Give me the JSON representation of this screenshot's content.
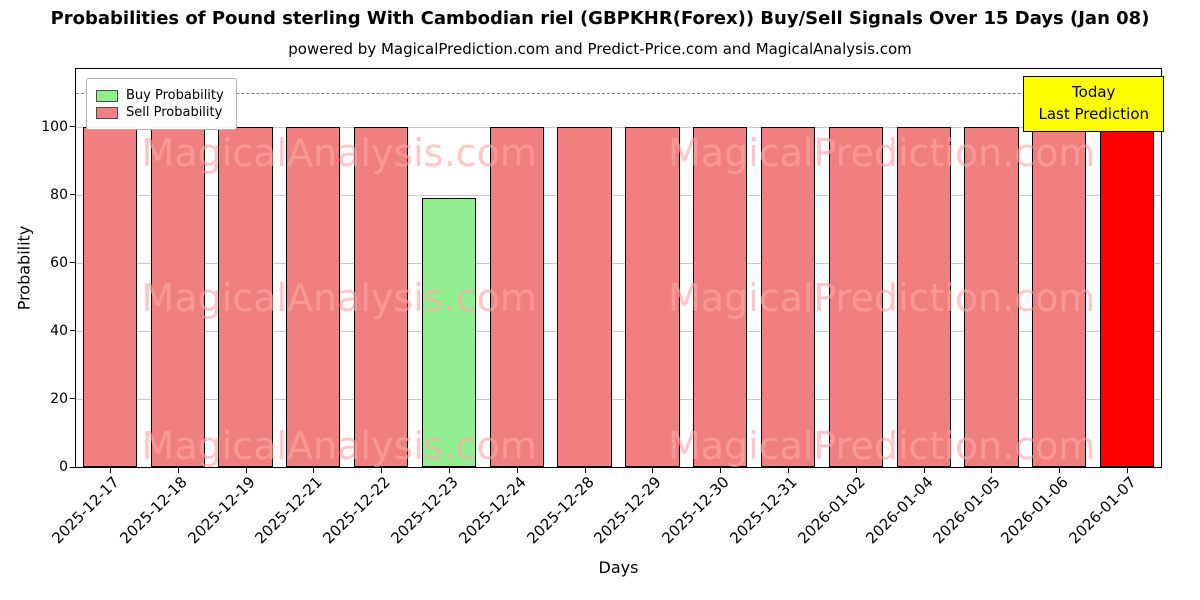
{
  "title": "Probabilities of Pound sterling With Cambodian riel (GBPKHR(Forex)) Buy/Sell Signals Over 15 Days (Jan 08)",
  "subtitle": "powered by MagicalPrediction.com and Predict-Price.com and MagicalAnalysis.com",
  "legend": {
    "items": [
      {
        "label": "Buy Probability",
        "color": "#90ee90"
      },
      {
        "label": "Sell Probability",
        "color": "#f08080"
      }
    ]
  },
  "annotation": {
    "line1": "Today",
    "line2": "Last Prediction",
    "bg_color": "#ffff00"
  },
  "watermarks": {
    "texts": [
      "MagicalAnalysis.com",
      "MagicalPrediction.com"
    ]
  },
  "chart_data": {
    "type": "bar",
    "title": "Probabilities of Pound sterling With Cambodian riel (GBPKHR(Forex)) Buy/Sell Signals Over 15 Days (Jan 08)",
    "xlabel": "Days",
    "ylabel": "Probability",
    "ylim": [
      0,
      117
    ],
    "yticks": [
      0,
      20,
      40,
      60,
      80,
      100
    ],
    "grid": "horizontal",
    "dashed_line_y": 110,
    "legend_position": "upper left",
    "categories": [
      "2025-12-17",
      "2025-12-18",
      "2025-12-19",
      "2025-12-21",
      "2025-12-22",
      "2025-12-23",
      "2025-12-24",
      "2025-12-28",
      "2025-12-29",
      "2025-12-30",
      "2025-12-31",
      "2026-01-02",
      "2026-01-04",
      "2026-01-05",
      "2026-01-06",
      "2026-01-07"
    ],
    "series": [
      {
        "name": "Buy Probability",
        "color": "#90ee90",
        "values": [
          0,
          0,
          0,
          0,
          0,
          79,
          0,
          0,
          0,
          0,
          0,
          0,
          0,
          0,
          0,
          0
        ]
      },
      {
        "name": "Sell Probability",
        "color": "#f08080",
        "values": [
          100,
          100,
          100,
          100,
          100,
          0,
          100,
          100,
          100,
          100,
          100,
          100,
          100,
          100,
          100,
          0
        ]
      },
      {
        "name": "Today Last Prediction",
        "color": "#ff0000",
        "values": [
          0,
          0,
          0,
          0,
          0,
          0,
          0,
          0,
          0,
          0,
          0,
          0,
          0,
          0,
          0,
          100
        ]
      }
    ]
  }
}
